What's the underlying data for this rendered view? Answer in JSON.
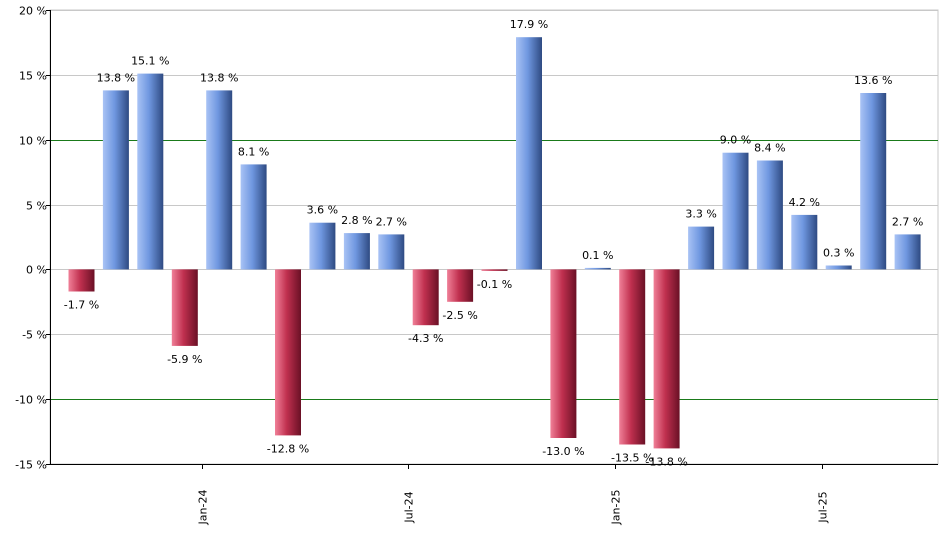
{
  "chart_data": {
    "type": "bar",
    "title": "",
    "xlabel": "",
    "ylabel": "",
    "ylim": [
      -15,
      20
    ],
    "y_ticks": [
      20,
      15,
      10,
      5,
      0,
      -5,
      -10,
      -15
    ],
    "y_tick_suffix": " %",
    "grid": true,
    "highlight_lines": [
      10,
      -10
    ],
    "colors": {
      "positive_light": "#a9c3f5",
      "positive_mid": "#6f97e0",
      "positive_dark": "#2e4a82",
      "negative_light": "#f08098",
      "negative_mid": "#c0304f",
      "negative_dark": "#6a1025",
      "grid": "#c8c8c8",
      "highlight_line": "#1a7a1a",
      "axis": "#000000"
    },
    "series": [
      {
        "values": [
          -1.7,
          13.8,
          15.1,
          -5.9,
          13.8,
          8.1,
          -12.8,
          3.6,
          2.8,
          2.7,
          -4.3,
          -2.5,
          -0.1,
          17.9,
          -13.0,
          0.1,
          -13.5,
          -13.8,
          3.3,
          9.0,
          8.4,
          4.2,
          0.3,
          13.6,
          2.7
        ]
      }
    ],
    "data_labels": [
      "-1.7 %",
      "13.8 %",
      "15.1 %",
      "-5.9 %",
      "13.8 %",
      "8.1 %",
      "-12.8 %",
      "3.6 %",
      "2.8 %",
      "2.7 %",
      "-4.3 %",
      "-2.5 %",
      "-0.1 %",
      "17.9 %",
      "-13.0 %",
      "0.1 %",
      "-13.5 %",
      "-13.8 %",
      "3.3 %",
      "9.0 %",
      "8.4 %",
      "4.2 %",
      "0.3 %",
      "13.6 %",
      "2.7 %"
    ],
    "x_tick_labels": [
      {
        "label": "Jan-24",
        "after_bar": 3
      },
      {
        "label": "Jul-24",
        "after_bar": 9
      },
      {
        "label": "Jan-25",
        "after_bar": 15
      },
      {
        "label": "Jul-25",
        "after_bar": 21
      }
    ]
  }
}
